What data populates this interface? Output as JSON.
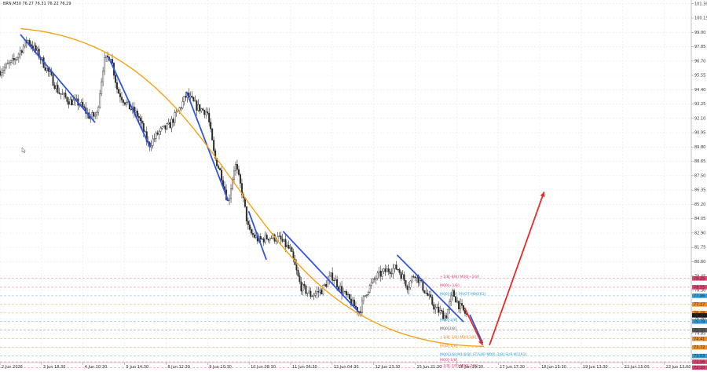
{
  "header": {
    "symbol_line": "BRN,M30  76.27 76.31 76.22 76.29"
  },
  "chart_data": {
    "type": "candlestick",
    "ylim": [
      72.5,
      101.6
    ],
    "y_ticks": [
      {
        "v": 101.3,
        "label": "101.30"
      },
      {
        "v": 100.15,
        "label": "100.15"
      },
      {
        "v": 99.0,
        "label": "99.00"
      },
      {
        "v": 97.85,
        "label": "97.85"
      },
      {
        "v": 96.7,
        "label": "96.70"
      },
      {
        "v": 95.55,
        "label": "95.55"
      },
      {
        "v": 94.4,
        "label": "94.40"
      },
      {
        "v": 93.25,
        "label": "93.25"
      },
      {
        "v": 92.1,
        "label": "92.10"
      },
      {
        "v": 90.95,
        "label": "90.95"
      },
      {
        "v": 89.8,
        "label": "89.80"
      },
      {
        "v": 88.65,
        "label": "88.65"
      },
      {
        "v": 87.5,
        "label": "87.50"
      },
      {
        "v": 86.35,
        "label": "86.35"
      },
      {
        "v": 85.2,
        "label": "85.20"
      },
      {
        "v": 84.05,
        "label": "84.05"
      },
      {
        "v": 82.9,
        "label": "82.90"
      },
      {
        "v": 81.75,
        "label": "81.75"
      },
      {
        "v": 80.6,
        "label": "80.60"
      },
      {
        "v": 79.45,
        "label": "79.45"
      },
      {
        "v": 78.3,
        "label": "78.30"
      },
      {
        "v": 77.15,
        "label": "77.15"
      },
      {
        "v": 76.0,
        "label": "76.00"
      },
      {
        "v": 74.85,
        "label": "74.85"
      },
      {
        "v": 73.7,
        "label": "73.70"
      }
    ],
    "x_labels": [
      "2 Jun 2026",
      "3 Jun 18:30",
      "4 Jun 10:30",
      "5 Jun 14:30",
      "8 Jun 12:30",
      "9 Jun 10:30",
      "10 Jun 08:30",
      "11 Jun 06:30",
      "12 Jun 04:30",
      "12 Jun 23:30",
      "15 Jun 21:30",
      "16 Jun 19:30",
      "17 Jun 17:30",
      "18 Jun 15:30",
      "19 Jun 13:30",
      "22 Jun 15:00",
      "23 Jun 13:00"
    ],
    "price_path": [
      [
        0.0,
        95.9
      ],
      [
        0.02,
        96.7
      ],
      [
        0.04,
        98.4
      ],
      [
        0.055,
        97.3
      ],
      [
        0.07,
        95.8
      ],
      [
        0.085,
        94.2
      ],
      [
        0.1,
        93.5
      ],
      [
        0.115,
        93.3
      ],
      [
        0.13,
        92.2
      ],
      [
        0.14,
        92.4
      ],
      [
        0.15,
        96.6
      ],
      [
        0.16,
        97.2
      ],
      [
        0.17,
        94.3
      ],
      [
        0.185,
        93.1
      ],
      [
        0.2,
        92.3
      ],
      [
        0.215,
        89.9
      ],
      [
        0.23,
        91.0
      ],
      [
        0.245,
        91.5
      ],
      [
        0.26,
        92.9
      ],
      [
        0.27,
        94.0
      ],
      [
        0.285,
        93.0
      ],
      [
        0.3,
        92.6
      ],
      [
        0.31,
        89.1
      ],
      [
        0.32,
        87.6
      ],
      [
        0.33,
        85.3
      ],
      [
        0.34,
        88.5
      ],
      [
        0.35,
        86.2
      ],
      [
        0.36,
        83.0
      ],
      [
        0.375,
        82.3
      ],
      [
        0.39,
        82.6
      ],
      [
        0.405,
        82.4
      ],
      [
        0.42,
        81.5
      ],
      [
        0.435,
        78.6
      ],
      [
        0.45,
        77.9
      ],
      [
        0.465,
        78.3
      ],
      [
        0.48,
        79.5
      ],
      [
        0.495,
        78.2
      ],
      [
        0.51,
        77.2
      ],
      [
        0.52,
        76.6
      ],
      [
        0.53,
        78.2
      ],
      [
        0.545,
        79.4
      ],
      [
        0.56,
        79.9
      ],
      [
        0.575,
        80.1
      ],
      [
        0.59,
        78.6
      ],
      [
        0.6,
        79.7
      ],
      [
        0.615,
        78.2
      ],
      [
        0.63,
        76.8
      ],
      [
        0.645,
        76.2
      ],
      [
        0.655,
        78.1
      ],
      [
        0.665,
        77.0
      ],
      [
        0.675,
        76.3
      ]
    ],
    "trend_lines": [
      {
        "from": [
          0.03,
          98.8
        ],
        "to": [
          0.137,
          91.8
        ]
      },
      {
        "from": [
          0.157,
          97.0
        ],
        "to": [
          0.217,
          89.8
        ]
      },
      {
        "from": [
          0.27,
          94.2
        ],
        "to": [
          0.33,
          85.5
        ]
      },
      {
        "from": [
          0.36,
          84.6
        ],
        "to": [
          0.385,
          80.8
        ]
      },
      {
        "from": [
          0.41,
          83.0
        ],
        "to": [
          0.52,
          76.5
        ]
      },
      {
        "from": [
          0.575,
          81.1
        ],
        "to": [
          0.67,
          75.8
        ]
      },
      {
        "from": [
          0.68,
          76.3
        ],
        "to": [
          0.698,
          74.1
        ]
      }
    ],
    "arc_curve": [
      [
        0.03,
        99.3
      ],
      [
        0.36,
        97.8
      ],
      [
        0.33,
        74.0
      ],
      [
        0.7,
        73.8
      ]
    ],
    "projection_arrows": [
      {
        "from": [
          0.672,
          76.9
        ],
        "to": [
          0.698,
          73.9
        ]
      },
      {
        "from": [
          0.708,
          73.9
        ],
        "to": [
          0.787,
          86.2
        ]
      }
    ],
    "levels": [
      {
        "v": 79.25,
        "label": "+1/8[-8/8] M00[+2/8]",
        "color": "#e04070",
        "tag": "79.25"
      },
      {
        "v": 78.55,
        "label": "M00[+1/8]",
        "color": "#e04070",
        "tag": "78.55"
      },
      {
        "v": 77.86,
        "label": "M00[-8/8] PIVOT M00[R3]",
        "color": "#2a9ee0",
        "tag": "77.86"
      },
      {
        "v": 77.17,
        "label": "",
        "color": "#f08a1e",
        "tag": "77.17"
      },
      {
        "v": 76.48,
        "label": "",
        "color": "#f08a1e",
        "tag": "76.48"
      },
      {
        "v": 75.79,
        "label": "M00[-2/8]",
        "color": "#2a9ee0",
        "tag": "75.79"
      },
      {
        "v": 75.1,
        "label": "M00[3/8]",
        "color": "#555555",
        "tag": "75.10"
      },
      {
        "v": 74.41,
        "label": "+1/8[-1/8] M00[3/8]",
        "color": "#f08a1e",
        "tag": "74.41"
      },
      {
        "v": 73.72,
        "label": "M00[-1/8]",
        "color": "#f08a1e",
        "tag": "73.72"
      },
      {
        "v": 73.03,
        "label": "M00[3/8] M1[8/8] ST/SUP M00[-1/8] SUP M1[R1]",
        "color": "#2a9ee0",
        "tag": "73.03"
      },
      {
        "v": 72.56,
        "label": "M00[-1/8]",
        "color": "#e04070",
        "tag": "72.56"
      },
      {
        "v": 72.1,
        "label": "+1/8[-1/8] M00[-2/8]",
        "color": "#e04070",
        "tag": "72.10"
      }
    ],
    "colors": {
      "candles": "#2b2b2b",
      "trend": "#2f55e0",
      "arc": "#f4a316",
      "arrow": "#e82a2a",
      "grid": "#e6e6e6",
      "price_tag": "#1c1c1c"
    },
    "current_price": {
      "v": 76.29,
      "label": "76.29"
    }
  }
}
